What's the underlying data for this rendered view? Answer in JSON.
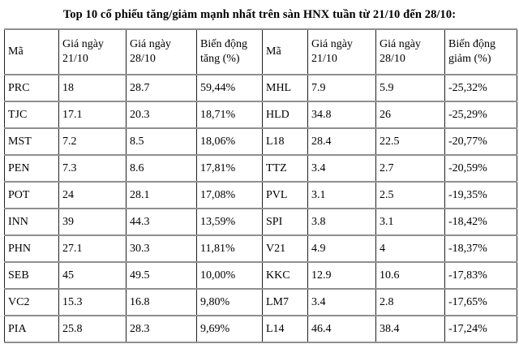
{
  "title": "Top 10 cổ phiếu tăng/giảm mạnh nhất trên sàn HNX tuần từ 21/10 đến 28/10:",
  "table": {
    "headers": {
      "code": "Mã",
      "price_21": "Giá ngày 21/10",
      "price_28": "Giá ngày 28/10",
      "change_up": "Biến động tăng (%)",
      "change_down": "Biến động giảm (%)"
    },
    "rows": [
      [
        "PRC",
        "18",
        "28.7",
        "59,44%",
        "MHL",
        "7.9",
        "5.9",
        "-25,32%"
      ],
      [
        "TJC",
        "17.1",
        "20.3",
        "18,71%",
        "HLD",
        "34.8",
        "26",
        "-25,29%"
      ],
      [
        "MST",
        "7.2",
        "8.5",
        "18,06%",
        "L18",
        "28.4",
        "22.5",
        "-20,77%"
      ],
      [
        "PEN",
        "7.3",
        "8.6",
        "17,81%",
        "TTZ",
        "3.4",
        "2.7",
        "-20,59%"
      ],
      [
        "POT",
        "24",
        "28.1",
        "17,08%",
        "PVL",
        "3.1",
        "2.5",
        "-19,35%"
      ],
      [
        "INN",
        "39",
        "44.3",
        "13,59%",
        "SPI",
        "3.8",
        "3.1",
        "-18,42%"
      ],
      [
        "PHN",
        "27.1",
        "30.3",
        "11,81%",
        "V21",
        "4.9",
        "4",
        "-18,37%"
      ],
      [
        "SEB",
        "45",
        "49.5",
        "10,00%",
        "KKC",
        "12.9",
        "10.6",
        "-17,83%"
      ],
      [
        "VC2",
        "15.3",
        "16.8",
        "9,80%",
        "LM7",
        "3.4",
        "2.8",
        "-17,65%"
      ],
      [
        "PIA",
        "25.8",
        "28.3",
        "9,69%",
        "L14",
        "46.4",
        "38.4",
        "-17,24%"
      ]
    ]
  }
}
